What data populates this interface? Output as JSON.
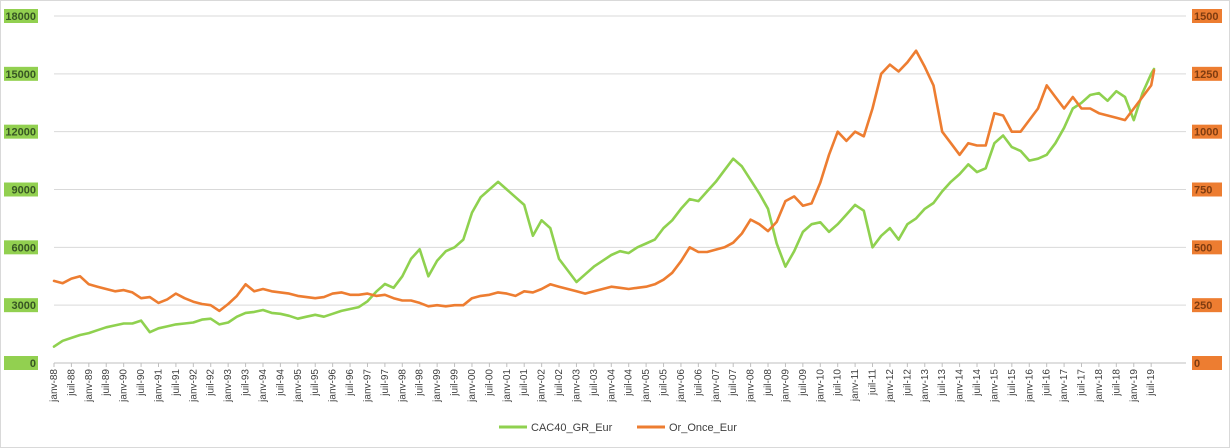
{
  "chart_data": {
    "type": "line",
    "title": "",
    "xlabel": "",
    "ylabel": "",
    "grid": true,
    "legend_position": "bottom-center",
    "y_left": {
      "min": 0,
      "max": 18000,
      "ticks": [
        0,
        3000,
        6000,
        9000,
        12000,
        15000,
        18000
      ],
      "tick_labels": [
        "0",
        "3000",
        "6000",
        "9000",
        "12000",
        "15000",
        "18000"
      ],
      "label_color": "#375623",
      "label_bg": "#92d050"
    },
    "y_right": {
      "min": 0,
      "max": 1500,
      "ticks": [
        0,
        250,
        500,
        750,
        1000,
        1250,
        1500
      ],
      "tick_labels": [
        "0",
        "250",
        "500",
        "750",
        "1000",
        "1250",
        "1500"
      ],
      "label_color": "#7f3c10",
      "label_bg": "#ed7d31"
    },
    "x_tick_labels": [
      "janv-88",
      "juil-88",
      "janv-89",
      "juil-89",
      "janv-90",
      "juil-90",
      "janv-91",
      "juil-91",
      "janv-92",
      "juil-92",
      "janv-93",
      "juil-93",
      "janv-94",
      "juil-94",
      "janv-95",
      "juil-95",
      "janv-96",
      "juil-96",
      "janv-97",
      "juil-97",
      "janv-98",
      "juil-98",
      "janv-99",
      "juil-99",
      "janv-00",
      "juil-00",
      "janv-01",
      "juil-01",
      "janv-02",
      "juil-02",
      "janv-03",
      "juil-03",
      "janv-04",
      "juil-04",
      "janv-05",
      "juil-05",
      "janv-06",
      "juil-06",
      "janv-07",
      "juil-07",
      "janv-08",
      "juil-08",
      "janv-09",
      "juil-09",
      "janv-10",
      "juil-10",
      "janv-11",
      "juil-11",
      "janv-12",
      "juil-12",
      "janv-13",
      "juil-13",
      "janv-14",
      "juil-14",
      "janv-15",
      "juil-15",
      "janv-16",
      "juil-16",
      "janv-17",
      "juil-17",
      "janv-18",
      "juil-18",
      "janv-19",
      "juil-19"
    ],
    "series": [
      {
        "name": "CAC40_GR_Eur",
        "axis": "left",
        "color": "#8fd14f",
        "points": [
          [
            1988.0,
            850
          ],
          [
            1988.25,
            1150
          ],
          [
            1988.5,
            1300
          ],
          [
            1988.75,
            1450
          ],
          [
            1989.0,
            1550
          ],
          [
            1989.25,
            1700
          ],
          [
            1989.5,
            1850
          ],
          [
            1989.75,
            1950
          ],
          [
            1990.0,
            2050
          ],
          [
            1990.25,
            2050
          ],
          [
            1990.5,
            2200
          ],
          [
            1990.75,
            1600
          ],
          [
            1991.0,
            1800
          ],
          [
            1991.25,
            1900
          ],
          [
            1991.5,
            2000
          ],
          [
            1991.75,
            2050
          ],
          [
            1992.0,
            2100
          ],
          [
            1992.25,
            2250
          ],
          [
            1992.5,
            2300
          ],
          [
            1992.75,
            2000
          ],
          [
            1993.0,
            2100
          ],
          [
            1993.25,
            2400
          ],
          [
            1993.5,
            2600
          ],
          [
            1993.75,
            2650
          ],
          [
            1994.0,
            2750
          ],
          [
            1994.25,
            2600
          ],
          [
            1994.5,
            2550
          ],
          [
            1994.75,
            2450
          ],
          [
            1995.0,
            2300
          ],
          [
            1995.25,
            2400
          ],
          [
            1995.5,
            2500
          ],
          [
            1995.75,
            2400
          ],
          [
            1996.0,
            2550
          ],
          [
            1996.25,
            2700
          ],
          [
            1996.5,
            2800
          ],
          [
            1996.75,
            2900
          ],
          [
            1997.0,
            3200
          ],
          [
            1997.25,
            3700
          ],
          [
            1997.5,
            4100
          ],
          [
            1997.75,
            3900
          ],
          [
            1998.0,
            4500
          ],
          [
            1998.25,
            5400
          ],
          [
            1998.5,
            5900
          ],
          [
            1998.75,
            4500
          ],
          [
            1999.0,
            5300
          ],
          [
            1999.25,
            5800
          ],
          [
            1999.5,
            6000
          ],
          [
            1999.75,
            6400
          ],
          [
            2000.0,
            7800
          ],
          [
            2000.25,
            8600
          ],
          [
            2000.5,
            9000
          ],
          [
            2000.75,
            9400
          ],
          [
            2001.0,
            9000
          ],
          [
            2001.25,
            8600
          ],
          [
            2001.5,
            8200
          ],
          [
            2001.75,
            6600
          ],
          [
            2002.0,
            7400
          ],
          [
            2002.25,
            7000
          ],
          [
            2002.5,
            5400
          ],
          [
            2002.75,
            4800
          ],
          [
            2003.0,
            4200
          ],
          [
            2003.25,
            4600
          ],
          [
            2003.5,
            5000
          ],
          [
            2003.75,
            5300
          ],
          [
            2004.0,
            5600
          ],
          [
            2004.25,
            5800
          ],
          [
            2004.5,
            5700
          ],
          [
            2004.75,
            6000
          ],
          [
            2005.0,
            6200
          ],
          [
            2005.25,
            6400
          ],
          [
            2005.5,
            7000
          ],
          [
            2005.75,
            7400
          ],
          [
            2006.0,
            8000
          ],
          [
            2006.25,
            8500
          ],
          [
            2006.5,
            8400
          ],
          [
            2006.75,
            8900
          ],
          [
            2007.0,
            9400
          ],
          [
            2007.25,
            10000
          ],
          [
            2007.5,
            10600
          ],
          [
            2007.75,
            10200
          ],
          [
            2008.0,
            9500
          ],
          [
            2008.25,
            8800
          ],
          [
            2008.5,
            8000
          ],
          [
            2008.75,
            6200
          ],
          [
            2009.0,
            5000
          ],
          [
            2009.25,
            5800
          ],
          [
            2009.5,
            6800
          ],
          [
            2009.75,
            7200
          ],
          [
            2010.0,
            7300
          ],
          [
            2010.25,
            6800
          ],
          [
            2010.5,
            7200
          ],
          [
            2010.75,
            7700
          ],
          [
            2011.0,
            8200
          ],
          [
            2011.25,
            7900
          ],
          [
            2011.5,
            6000
          ],
          [
            2011.75,
            6600
          ],
          [
            2012.0,
            7000
          ],
          [
            2012.25,
            6400
          ],
          [
            2012.5,
            7200
          ],
          [
            2012.75,
            7500
          ],
          [
            2013.0,
            8000
          ],
          [
            2013.25,
            8300
          ],
          [
            2013.5,
            8900
          ],
          [
            2013.75,
            9400
          ],
          [
            2014.0,
            9800
          ],
          [
            2014.25,
            10300
          ],
          [
            2014.5,
            9900
          ],
          [
            2014.75,
            10100
          ],
          [
            2015.0,
            11400
          ],
          [
            2015.25,
            11800
          ],
          [
            2015.5,
            11200
          ],
          [
            2015.75,
            11000
          ],
          [
            2016.0,
            10500
          ],
          [
            2016.25,
            10600
          ],
          [
            2016.5,
            10800
          ],
          [
            2016.75,
            11400
          ],
          [
            2017.0,
            12200
          ],
          [
            2017.25,
            13200
          ],
          [
            2017.5,
            13500
          ],
          [
            2017.75,
            13900
          ],
          [
            2018.0,
            14000
          ],
          [
            2018.25,
            13600
          ],
          [
            2018.5,
            14100
          ],
          [
            2018.75,
            13800
          ],
          [
            2019.0,
            12600
          ],
          [
            2019.25,
            14000
          ],
          [
            2019.5,
            15000
          ],
          [
            2019.58,
            15250
          ]
        ]
      },
      {
        "name": "Or_Once_Eur",
        "axis": "right",
        "color": "#ed7d31",
        "points": [
          [
            1988.0,
            355
          ],
          [
            1988.25,
            345
          ],
          [
            1988.5,
            365
          ],
          [
            1988.75,
            375
          ],
          [
            1989.0,
            340
          ],
          [
            1989.25,
            330
          ],
          [
            1989.5,
            320
          ],
          [
            1989.75,
            310
          ],
          [
            1990.0,
            315
          ],
          [
            1990.25,
            305
          ],
          [
            1990.5,
            280
          ],
          [
            1990.75,
            285
          ],
          [
            1991.0,
            260
          ],
          [
            1991.25,
            275
          ],
          [
            1991.5,
            300
          ],
          [
            1991.75,
            280
          ],
          [
            1992.0,
            265
          ],
          [
            1992.25,
            255
          ],
          [
            1992.5,
            250
          ],
          [
            1992.75,
            225
          ],
          [
            1993.0,
            255
          ],
          [
            1993.25,
            290
          ],
          [
            1993.5,
            340
          ],
          [
            1993.75,
            310
          ],
          [
            1994.0,
            320
          ],
          [
            1994.25,
            310
          ],
          [
            1994.5,
            305
          ],
          [
            1994.75,
            300
          ],
          [
            1995.0,
            290
          ],
          [
            1995.25,
            285
          ],
          [
            1995.5,
            280
          ],
          [
            1995.75,
            285
          ],
          [
            1996.0,
            300
          ],
          [
            1996.25,
            305
          ],
          [
            1996.5,
            295
          ],
          [
            1996.75,
            295
          ],
          [
            1997.0,
            300
          ],
          [
            1997.25,
            290
          ],
          [
            1997.5,
            295
          ],
          [
            1997.75,
            280
          ],
          [
            1998.0,
            270
          ],
          [
            1998.25,
            270
          ],
          [
            1998.5,
            260
          ],
          [
            1998.75,
            245
          ],
          [
            1999.0,
            250
          ],
          [
            1999.25,
            245
          ],
          [
            1999.5,
            250
          ],
          [
            1999.75,
            250
          ],
          [
            2000.0,
            280
          ],
          [
            2000.25,
            290
          ],
          [
            2000.5,
            295
          ],
          [
            2000.75,
            305
          ],
          [
            2001.0,
            300
          ],
          [
            2001.25,
            290
          ],
          [
            2001.5,
            310
          ],
          [
            2001.75,
            305
          ],
          [
            2002.0,
            320
          ],
          [
            2002.25,
            340
          ],
          [
            2002.5,
            330
          ],
          [
            2002.75,
            320
          ],
          [
            2003.0,
            310
          ],
          [
            2003.25,
            300
          ],
          [
            2003.5,
            310
          ],
          [
            2003.75,
            320
          ],
          [
            2004.0,
            330
          ],
          [
            2004.25,
            325
          ],
          [
            2004.5,
            320
          ],
          [
            2004.75,
            325
          ],
          [
            2005.0,
            330
          ],
          [
            2005.25,
            340
          ],
          [
            2005.5,
            360
          ],
          [
            2005.75,
            390
          ],
          [
            2006.0,
            440
          ],
          [
            2006.25,
            500
          ],
          [
            2006.5,
            480
          ],
          [
            2006.75,
            480
          ],
          [
            2007.0,
            490
          ],
          [
            2007.25,
            500
          ],
          [
            2007.5,
            520
          ],
          [
            2007.75,
            560
          ],
          [
            2008.0,
            620
          ],
          [
            2008.25,
            600
          ],
          [
            2008.5,
            570
          ],
          [
            2008.75,
            610
          ],
          [
            2009.0,
            700
          ],
          [
            2009.25,
            720
          ],
          [
            2009.5,
            680
          ],
          [
            2009.75,
            690
          ],
          [
            2010.0,
            780
          ],
          [
            2010.25,
            900
          ],
          [
            2010.5,
            1000
          ],
          [
            2010.75,
            960
          ],
          [
            2011.0,
            1000
          ],
          [
            2011.25,
            980
          ],
          [
            2011.5,
            1100
          ],
          [
            2011.75,
            1250
          ],
          [
            2012.0,
            1290
          ],
          [
            2012.25,
            1260
          ],
          [
            2012.5,
            1300
          ],
          [
            2012.75,
            1350
          ],
          [
            2013.0,
            1280
          ],
          [
            2013.25,
            1200
          ],
          [
            2013.5,
            1000
          ],
          [
            2013.75,
            950
          ],
          [
            2014.0,
            900
          ],
          [
            2014.25,
            950
          ],
          [
            2014.5,
            940
          ],
          [
            2014.75,
            940
          ],
          [
            2015.0,
            1080
          ],
          [
            2015.25,
            1070
          ],
          [
            2015.5,
            1000
          ],
          [
            2015.75,
            1000
          ],
          [
            2016.0,
            1050
          ],
          [
            2016.25,
            1100
          ],
          [
            2016.5,
            1200
          ],
          [
            2016.75,
            1150
          ],
          [
            2017.0,
            1100
          ],
          [
            2017.25,
            1150
          ],
          [
            2017.5,
            1100
          ],
          [
            2017.75,
            1100
          ],
          [
            2018.0,
            1080
          ],
          [
            2018.25,
            1070
          ],
          [
            2018.5,
            1060
          ],
          [
            2018.75,
            1050
          ],
          [
            2019.0,
            1100
          ],
          [
            2019.25,
            1150
          ],
          [
            2019.5,
            1200
          ],
          [
            2019.58,
            1265
          ]
        ]
      }
    ]
  }
}
